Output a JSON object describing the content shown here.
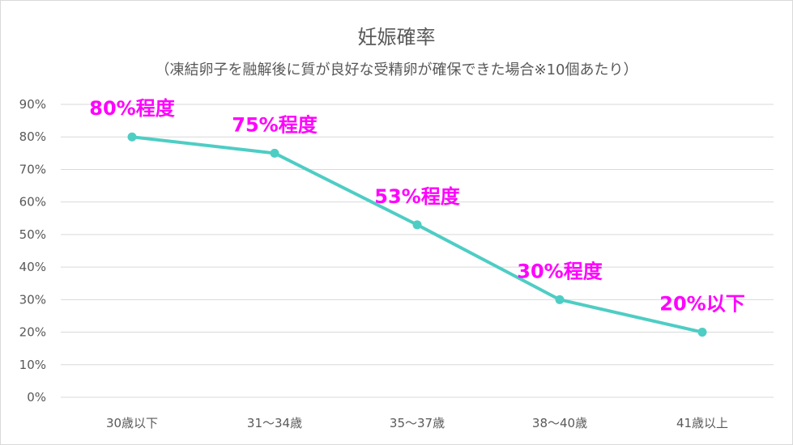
{
  "chart_data": {
    "type": "line",
    "title": "妊娠確率",
    "subtitle": "（凍結卵子を融解後に質が良好な受精卵が確保できた場合※10個あたり）",
    "categories": [
      "30歳以下",
      "31～34歳",
      "35～37歳",
      "38～40歳",
      "41歳以上"
    ],
    "values": [
      80,
      75,
      53,
      30,
      20
    ],
    "data_labels": [
      "80%程度",
      "75%程度",
      "53%程度",
      "30%程度",
      "20%以下"
    ],
    "ylim": [
      0,
      90
    ],
    "y_ticks": [
      "0%",
      "10%",
      "20%",
      "30%",
      "40%",
      "50%",
      "60%",
      "70%",
      "80%",
      "90%"
    ],
    "grid": true,
    "legend": "none",
    "colors": {
      "line": "#4ecdc4",
      "label": "#ff00ff",
      "grid": "#d9d9d9",
      "text": "#595959"
    }
  }
}
